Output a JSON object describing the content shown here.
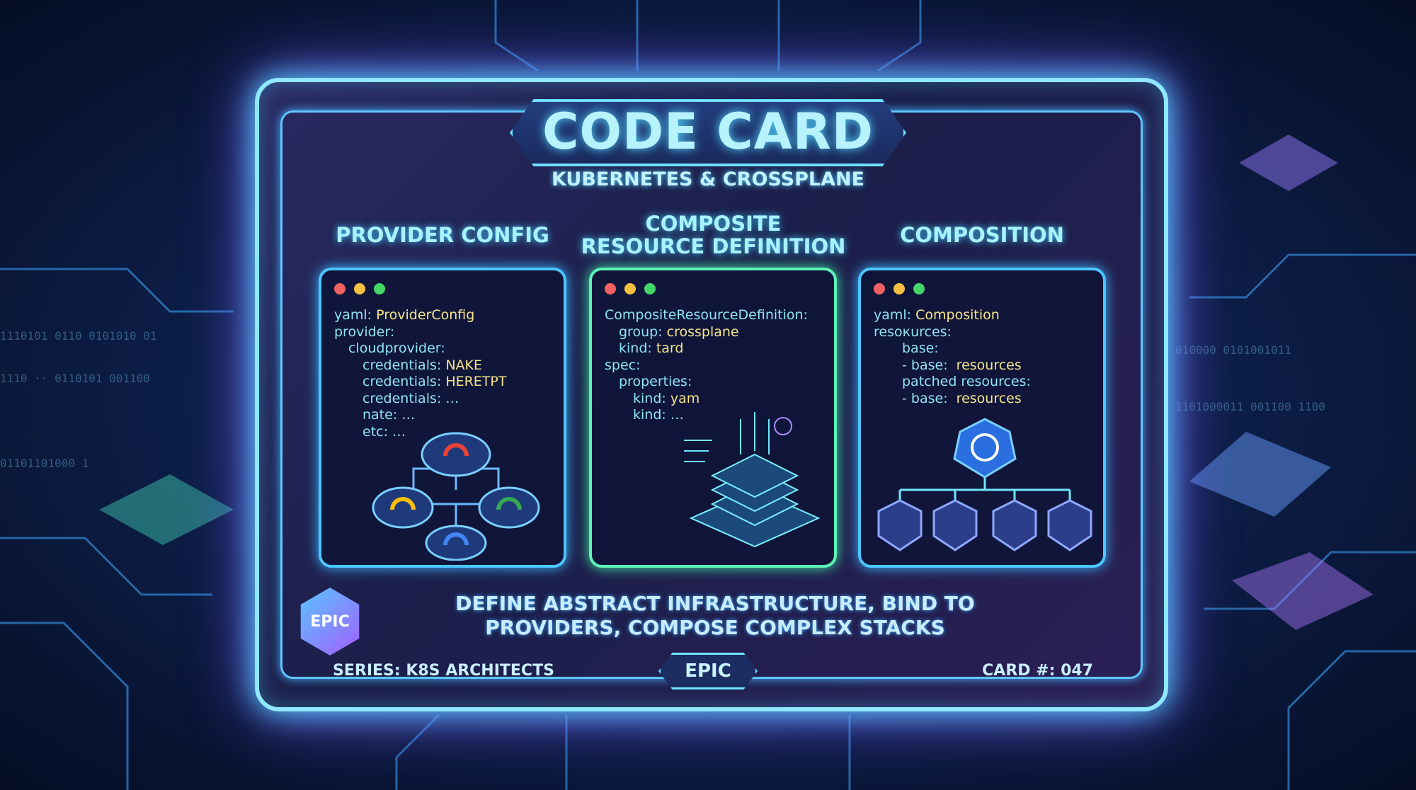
{
  "card": {
    "title": "CODE CARD",
    "subtitle": "KUBERNETES & CROSSPLANE",
    "columns": [
      {
        "heading": "PROVIDER CONFIG",
        "code": [
          {
            "key": "yaml: ",
            "value": "ProviderConfig",
            "indent": 0
          },
          {
            "key": "provider:",
            "value": "",
            "indent": 0
          },
          {
            "key": "cloudprovider:",
            "value": "",
            "indent": 1
          },
          {
            "key": "credentials: ",
            "value": "NAKE",
            "indent": 2
          },
          {
            "key": "credentials: ",
            "value": "HERETPT",
            "indent": 2
          },
          {
            "key": "credentials: …",
            "value": "",
            "indent": 2
          },
          {
            "key": "nate: …",
            "value": "",
            "indent": 2
          },
          {
            "key": "etc: …",
            "value": "",
            "indent": 2
          }
        ],
        "illustration": "cloud-network-icon"
      },
      {
        "heading": "COMPOSITE RESOURCE DEFINITION",
        "code": [
          {
            "key": "CompositeResourceDefinition:",
            "value": "",
            "indent": 0
          },
          {
            "key": "group: ",
            "value": "crossplane",
            "indent": 1
          },
          {
            "key": "kind: ",
            "value": "tard",
            "indent": 1
          },
          {
            "key": "spec:",
            "value": "",
            "indent": 0
          },
          {
            "key": "properties:",
            "value": "",
            "indent": 1
          },
          {
            "key": "kind: ",
            "value": "yam",
            "indent": 2
          },
          {
            "key": "kind: …",
            "value": "",
            "indent": 2
          }
        ],
        "illustration": "server-stack-icon"
      },
      {
        "heading": "COMPOSITION",
        "code": [
          {
            "key": "yaml: ",
            "value": "Composition",
            "indent": 0
          },
          {
            "key": "resoкurces:",
            "value": "",
            "indent": 0
          },
          {
            "key": "base:",
            "value": "",
            "indent": 2
          },
          {
            "key": "- base:  ",
            "value": "resources",
            "indent": 2
          },
          {
            "key": "patched resources:",
            "value": "",
            "indent": 2
          },
          {
            "key": "- base:  ",
            "value": "resources",
            "indent": 2
          }
        ],
        "illustration": "kubernetes-tree-icon"
      }
    ],
    "description": [
      "DEFINE ABSTRACT INFRASTRUCTURE, BIND TO",
      "PROVIDERS, COMPOSE COMPLEX STACKS"
    ],
    "badge": "EPIC",
    "footer": {
      "series": "SERIES: K8S ARCHITECTS",
      "rarity": "EPIC",
      "card_number": "CARD #: 047"
    }
  },
  "colors": {
    "dot_red": "#f06262",
    "dot_yellow": "#f5c042",
    "dot_green": "#45d66a",
    "accent_cyan": "#6fe0ff",
    "accent_purple": "#a45cff",
    "value_yellow": "#f6e48a"
  }
}
